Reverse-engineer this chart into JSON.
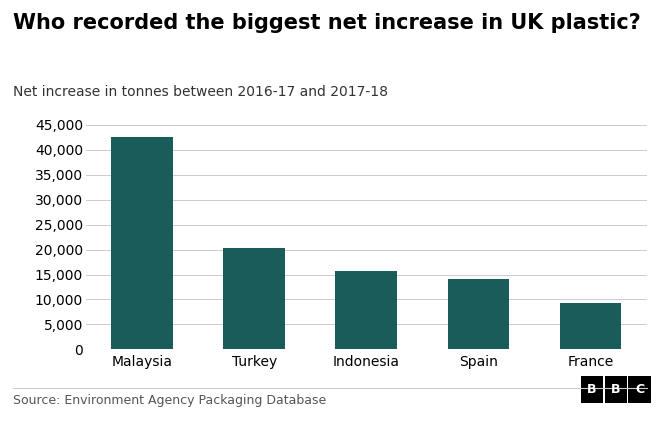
{
  "title": "Who recorded the biggest net increase in UK plastic?",
  "subtitle": "Net increase in tonnes between 2016-17 and 2017-18",
  "categories": [
    "Malaysia",
    "Turkey",
    "Indonesia",
    "Spain",
    "France"
  ],
  "values": [
    42500,
    20300,
    15700,
    14100,
    9200
  ],
  "bar_color": "#1a5c5a",
  "background_color": "#ffffff",
  "ylim": [
    0,
    47000
  ],
  "yticks": [
    0,
    5000,
    10000,
    15000,
    20000,
    25000,
    30000,
    35000,
    40000,
    45000
  ],
  "source_text": "Source: Environment Agency Packaging Database",
  "bbc_letters": [
    "B",
    "B",
    "C"
  ],
  "title_fontsize": 15,
  "subtitle_fontsize": 10,
  "tick_fontsize": 10,
  "source_fontsize": 9,
  "bar_width": 0.55
}
